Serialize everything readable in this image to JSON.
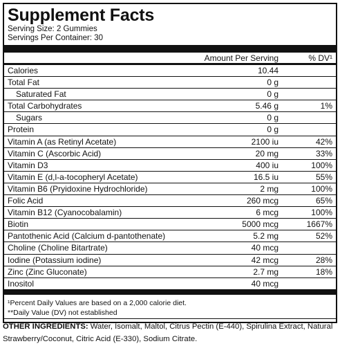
{
  "header": {
    "title": "Supplement Facts",
    "serving_size": "Serving Size: 2 Gummies",
    "servings_per_container": "Servings Per Container: 30"
  },
  "table": {
    "columns": [
      "Amount Per Serving",
      "% DV¹"
    ],
    "rows": [
      {
        "name": "Calories",
        "amount": "10.44"
      },
      {
        "name": "Total Fat",
        "amount": "0 g"
      },
      {
        "name": "Saturated Fat",
        "amount": "0 g"
      },
      {
        "name": "Total Carbohydrates",
        "amount": "5.46 g",
        "dv": "1%"
      },
      {
        "name": "Sugars",
        "amount": "0 g"
      },
      {
        "name": "Protein",
        "amount": "0 g"
      },
      {
        "name": "Vitamin A (as Retinyl Acetate)",
        "amount": "2100 iu",
        "dv": "42%"
      },
      {
        "name": "Vitamin C (Ascorbic Acid)",
        "amount": "20 mg",
        "dv": "33%"
      },
      {
        "name": "Vitamin D3",
        "amount": "400 iu",
        "dv": "100%"
      },
      {
        "name": "Vitamin E (d,l-a-tocopheryl Acetate)",
        "amount": "16.5 iu",
        "dv": "55%"
      },
      {
        "name": "Vitamin B6 (Pryidoxine Hydrochloride)",
        "amount": "2 mg",
        "dv": "100%"
      },
      {
        "name": "Folic Acid",
        "amount": "260 mcg",
        "dv": "65%"
      },
      {
        "name": "Vitamin B12 (Cyanocobalamin)",
        "amount": "6 mcg",
        "dv": "100%"
      },
      {
        "name": "Biotin",
        "amount": "5000 mcg",
        "dv": "1667%"
      },
      {
        "name": "Pantothenic Acid (Calcium d-pantothenate)",
        "amount": "5.2 mg",
        "dv": "52%"
      },
      {
        "name": "Choline (Choline Bitartrate)",
        "amount": "40 mcg"
      },
      {
        "name": "Iodine (Potassium iodine)",
        "amount": "42 mcg",
        "dv": "28%"
      },
      {
        "name": "Zinc (Zinc Gluconate)",
        "amount": "2.7 mg",
        "dv": "18%"
      },
      {
        "name": "Inositol",
        "amount": "40 mcg"
      }
    ]
  },
  "footnotes": [
    "¹Percent Daily Values are based on a 2,000 calorie diet.",
    "**Daily Value (DV) not established"
  ],
  "other_ingredients": {
    "label": "OTHER INGREDIENTS:",
    "text": "Water, Isomalt, Maltol, Citrus Pectin (E-440), Spirulina Extract, Natural Strawberry/Coconut, Citric Acid (E-330), Sodium Citrate."
  }
}
